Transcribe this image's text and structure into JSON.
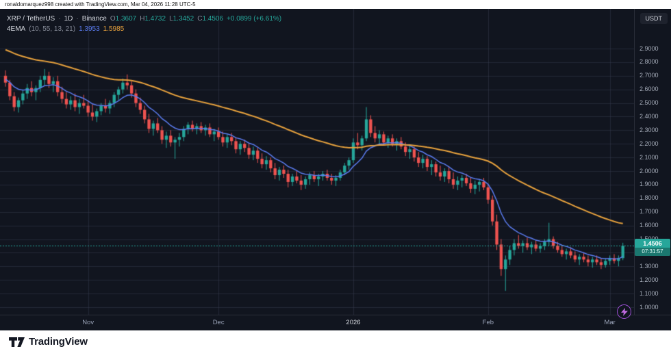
{
  "top_bar": {
    "attribution": "ronaldomarquez998 created with TradingView.com, Mar 04, 2026 11:28 UTC-5"
  },
  "legend": {
    "symbol": "XRP / TetherUS",
    "separator": "·",
    "interval": "1D",
    "exchange": "Binance",
    "o_label": "O",
    "o": "1.3607",
    "h_label": "H",
    "h": "1.4732",
    "l_label": "L",
    "l": "1.3452",
    "c_label": "C",
    "c": "1.4506",
    "change": "+0.0899 (+6.61%)",
    "indicator": {
      "name": "4EMA",
      "params": "(10, 55, 13, 21)",
      "value1": "1.3953",
      "value2": "1.5985"
    }
  },
  "price_scale": {
    "unit_button": "USDT",
    "last_price_label": "1.4506",
    "countdown": "07:31:57"
  },
  "footer": {
    "brand": "TradingView"
  },
  "chart_data": {
    "type": "candlestick",
    "symbol": "XRP/USDT",
    "exchange": "Binance",
    "interval": "1D",
    "y_axis": {
      "min": 1.0,
      "max": 2.9
    },
    "y_ticks": [
      2.9,
      2.8,
      2.7,
      2.6,
      2.5,
      2.4,
      2.3,
      2.2,
      2.1,
      2.0,
      1.9,
      1.8,
      1.7,
      1.6,
      1.5,
      1.4,
      1.3,
      1.2,
      1.1,
      1.0
    ],
    "x_ticks": [
      {
        "label": "Nov",
        "index": 19
      },
      {
        "label": "Dec",
        "index": 49
      },
      {
        "label": "2026",
        "index": 80,
        "year": true
      },
      {
        "label": "Feb",
        "index": 111
      },
      {
        "label": "Mar",
        "index": 139
      }
    ],
    "last_price": 1.4506,
    "colors": {
      "up": "#26a69a",
      "down": "#ef5350",
      "grid": "rgba(54,60,78,0.5)",
      "background": "#11151f"
    },
    "emas": [
      {
        "period": 10,
        "seed": 2.68,
        "color": "#5b7cf0",
        "width": 1.5
      },
      {
        "period": 55,
        "seed": 2.9,
        "color": "#e8a23d",
        "width": 2
      }
    ],
    "candles": [
      [
        2.7,
        2.74,
        2.62,
        2.65
      ],
      [
        2.65,
        2.67,
        2.52,
        2.55
      ],
      [
        2.55,
        2.58,
        2.44,
        2.47
      ],
      [
        2.47,
        2.54,
        2.43,
        2.52
      ],
      [
        2.52,
        2.6,
        2.49,
        2.57
      ],
      [
        2.57,
        2.64,
        2.53,
        2.61
      ],
      [
        2.61,
        2.66,
        2.55,
        2.58
      ],
      [
        2.58,
        2.63,
        2.52,
        2.61
      ],
      [
        2.61,
        2.7,
        2.58,
        2.67
      ],
      [
        2.67,
        2.75,
        2.63,
        2.7
      ],
      [
        2.7,
        2.73,
        2.61,
        2.64
      ],
      [
        2.64,
        2.69,
        2.58,
        2.66
      ],
      [
        2.66,
        2.7,
        2.55,
        2.58
      ],
      [
        2.58,
        2.62,
        2.5,
        2.53
      ],
      [
        2.53,
        2.58,
        2.46,
        2.49
      ],
      [
        2.49,
        2.55,
        2.45,
        2.52
      ],
      [
        2.52,
        2.57,
        2.44,
        2.47
      ],
      [
        2.47,
        2.53,
        2.42,
        2.5
      ],
      [
        2.5,
        2.56,
        2.46,
        2.48
      ],
      [
        2.48,
        2.52,
        2.4,
        2.43
      ],
      [
        2.43,
        2.49,
        2.37,
        2.4
      ],
      [
        2.4,
        2.46,
        2.36,
        2.44
      ],
      [
        2.44,
        2.5,
        2.41,
        2.48
      ],
      [
        2.48,
        2.53,
        2.43,
        2.46
      ],
      [
        2.46,
        2.52,
        2.42,
        2.5
      ],
      [
        2.5,
        2.58,
        2.47,
        2.56
      ],
      [
        2.56,
        2.62,
        2.52,
        2.6
      ],
      [
        2.6,
        2.68,
        2.57,
        2.65
      ],
      [
        2.65,
        2.71,
        2.6,
        2.63
      ],
      [
        2.63,
        2.66,
        2.54,
        2.57
      ],
      [
        2.57,
        2.6,
        2.47,
        2.5
      ],
      [
        2.5,
        2.54,
        2.42,
        2.45
      ],
      [
        2.45,
        2.48,
        2.35,
        2.38
      ],
      [
        2.38,
        2.42,
        2.28,
        2.31
      ],
      [
        2.31,
        2.37,
        2.26,
        2.35
      ],
      [
        2.35,
        2.39,
        2.28,
        2.3
      ],
      [
        2.3,
        2.33,
        2.2,
        2.23
      ],
      [
        2.23,
        2.29,
        2.17,
        2.26
      ],
      [
        2.26,
        2.3,
        2.18,
        2.21
      ],
      [
        2.21,
        2.25,
        2.09,
        2.23
      ],
      [
        2.23,
        2.28,
        2.18,
        2.25
      ],
      [
        2.25,
        2.33,
        2.22,
        2.31
      ],
      [
        2.31,
        2.36,
        2.27,
        2.34
      ],
      [
        2.34,
        2.37,
        2.29,
        2.31
      ],
      [
        2.31,
        2.35,
        2.27,
        2.33
      ],
      [
        2.33,
        2.36,
        2.28,
        2.3
      ],
      [
        2.3,
        2.34,
        2.26,
        2.32
      ],
      [
        2.32,
        2.35,
        2.25,
        2.27
      ],
      [
        2.27,
        2.31,
        2.22,
        2.29
      ],
      [
        2.29,
        2.32,
        2.23,
        2.25
      ],
      [
        2.25,
        2.29,
        2.18,
        2.21
      ],
      [
        2.21,
        2.27,
        2.17,
        2.25
      ],
      [
        2.25,
        2.28,
        2.19,
        2.22
      ],
      [
        2.22,
        2.25,
        2.13,
        2.16
      ],
      [
        2.16,
        2.22,
        2.12,
        2.2
      ],
      [
        2.2,
        2.23,
        2.14,
        2.17
      ],
      [
        2.17,
        2.2,
        2.09,
        2.12
      ],
      [
        2.12,
        2.18,
        2.08,
        2.15
      ],
      [
        2.15,
        2.17,
        2.06,
        2.09
      ],
      [
        2.09,
        2.13,
        2.02,
        2.05
      ],
      [
        2.05,
        2.11,
        2.01,
        2.08
      ],
      [
        2.08,
        2.1,
        1.99,
        2.02
      ],
      [
        2.02,
        2.06,
        1.94,
        1.97
      ],
      [
        1.97,
        2.03,
        1.93,
        2.01
      ],
      [
        2.01,
        2.04,
        1.95,
        1.98
      ],
      [
        1.98,
        2.01,
        1.88,
        1.92
      ],
      [
        1.92,
        1.98,
        1.89,
        1.96
      ],
      [
        1.96,
        2.0,
        1.91,
        1.93
      ],
      [
        1.93,
        1.97,
        1.86,
        1.9
      ],
      [
        1.9,
        1.96,
        1.87,
        1.94
      ],
      [
        1.94,
        1.99,
        1.9,
        1.97
      ],
      [
        1.97,
        2.0,
        1.92,
        1.94
      ],
      [
        1.94,
        1.98,
        1.89,
        1.96
      ],
      [
        1.96,
        2.0,
        1.93,
        1.98
      ],
      [
        1.98,
        2.01,
        1.93,
        1.95
      ],
      [
        1.95,
        1.98,
        1.9,
        1.93
      ],
      [
        1.93,
        1.97,
        1.89,
        1.95
      ],
      [
        1.95,
        2.01,
        1.93,
        1.99
      ],
      [
        1.99,
        2.06,
        1.97,
        2.04
      ],
      [
        2.04,
        2.1,
        2.01,
        2.08
      ],
      [
        2.08,
        2.24,
        2.06,
        2.21
      ],
      [
        2.21,
        2.28,
        2.16,
        2.19
      ],
      [
        2.19,
        2.26,
        2.15,
        2.24
      ],
      [
        2.24,
        2.47,
        2.22,
        2.38
      ],
      [
        2.38,
        2.41,
        2.25,
        2.28
      ],
      [
        2.28,
        2.33,
        2.21,
        2.24
      ],
      [
        2.24,
        2.3,
        2.2,
        2.27
      ],
      [
        2.27,
        2.29,
        2.19,
        2.21
      ],
      [
        2.21,
        2.26,
        2.17,
        2.24
      ],
      [
        2.24,
        2.27,
        2.18,
        2.2
      ],
      [
        2.2,
        2.24,
        2.15,
        2.22
      ],
      [
        2.22,
        2.25,
        2.16,
        2.18
      ],
      [
        2.18,
        2.21,
        2.11,
        2.14
      ],
      [
        2.14,
        2.19,
        2.09,
        2.16
      ],
      [
        2.16,
        2.18,
        2.07,
        2.1
      ],
      [
        2.1,
        2.14,
        2.03,
        2.06
      ],
      [
        2.06,
        2.12,
        2.02,
        2.09
      ],
      [
        2.09,
        2.11,
        2.0,
        2.03
      ],
      [
        2.03,
        2.08,
        1.97,
        2.05
      ],
      [
        2.05,
        2.07,
        1.96,
        1.99
      ],
      [
        1.99,
        2.04,
        1.93,
        1.96
      ],
      [
        1.96,
        2.02,
        1.92,
        2.0
      ],
      [
        2.0,
        2.03,
        1.91,
        1.94
      ],
      [
        1.94,
        1.99,
        1.87,
        1.9
      ],
      [
        1.9,
        1.96,
        1.86,
        1.93
      ],
      [
        1.93,
        1.97,
        1.88,
        1.95
      ],
      [
        1.95,
        1.98,
        1.89,
        1.91
      ],
      [
        1.91,
        1.95,
        1.84,
        1.87
      ],
      [
        1.87,
        1.93,
        1.83,
        1.9
      ],
      [
        1.9,
        1.94,
        1.85,
        1.92
      ],
      [
        1.92,
        1.95,
        1.86,
        1.88
      ],
      [
        1.88,
        1.9,
        1.76,
        1.79
      ],
      [
        1.79,
        1.82,
        1.6,
        1.63
      ],
      [
        1.63,
        1.68,
        1.42,
        1.46
      ],
      [
        1.46,
        1.5,
        1.23,
        1.28
      ],
      [
        1.28,
        1.38,
        1.12,
        1.35
      ],
      [
        1.35,
        1.45,
        1.31,
        1.42
      ],
      [
        1.42,
        1.5,
        1.38,
        1.47
      ],
      [
        1.47,
        1.53,
        1.43,
        1.45
      ],
      [
        1.45,
        1.49,
        1.4,
        1.47
      ],
      [
        1.47,
        1.51,
        1.42,
        1.44
      ],
      [
        1.44,
        1.48,
        1.39,
        1.46
      ],
      [
        1.46,
        1.49,
        1.41,
        1.43
      ],
      [
        1.43,
        1.47,
        1.4,
        1.45
      ],
      [
        1.45,
        1.5,
        1.42,
        1.48
      ],
      [
        1.48,
        1.62,
        1.45,
        1.5
      ],
      [
        1.5,
        1.52,
        1.43,
        1.45
      ],
      [
        1.45,
        1.48,
        1.4,
        1.42
      ],
      [
        1.42,
        1.45,
        1.37,
        1.39
      ],
      [
        1.39,
        1.43,
        1.35,
        1.41
      ],
      [
        1.41,
        1.44,
        1.36,
        1.38
      ],
      [
        1.38,
        1.41,
        1.33,
        1.35
      ],
      [
        1.35,
        1.39,
        1.31,
        1.37
      ],
      [
        1.37,
        1.4,
        1.33,
        1.35
      ],
      [
        1.35,
        1.38,
        1.3,
        1.33
      ],
      [
        1.33,
        1.37,
        1.29,
        1.35
      ],
      [
        1.35,
        1.38,
        1.31,
        1.33
      ],
      [
        1.33,
        1.36,
        1.28,
        1.31
      ],
      [
        1.31,
        1.36,
        1.29,
        1.34
      ],
      [
        1.34,
        1.38,
        1.31,
        1.36
      ],
      [
        1.36,
        1.39,
        1.32,
        1.34
      ],
      [
        1.34,
        1.38,
        1.3,
        1.3607
      ],
      [
        1.3607,
        1.4732,
        1.3452,
        1.4506
      ]
    ]
  }
}
